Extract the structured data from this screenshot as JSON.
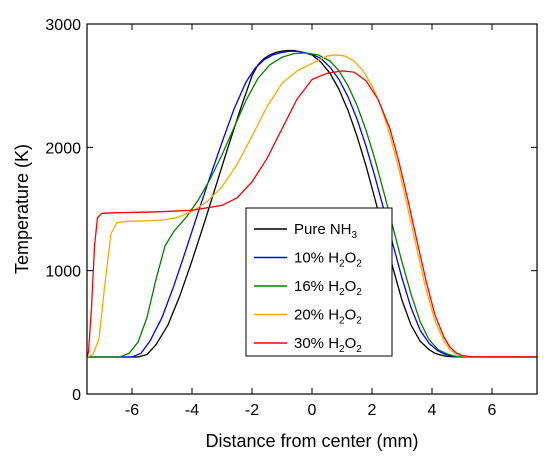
{
  "chart_data": {
    "type": "line",
    "title": "",
    "xlabel": "Distance from center (mm)",
    "ylabel": "Temperature (K)",
    "xlim": [
      -7.5,
      7.5
    ],
    "ylim": [
      0,
      3000
    ],
    "xticks": [
      -6,
      -4,
      -2,
      0,
      2,
      4,
      6
    ],
    "yticks": [
      0,
      1000,
      2000,
      3000
    ],
    "grid": false,
    "legend_position": "center-right",
    "series": [
      {
        "name": "Pure NH3",
        "label_main": "Pure NH",
        "label_sub": "3",
        "label_suffix": "",
        "color": "#000000",
        "x": [
          -7.5,
          -5.8,
          -5.5,
          -5.2,
          -4.8,
          -4.4,
          -4.0,
          -3.6,
          -3.2,
          -2.8,
          -2.4,
          -2.0,
          -1.8,
          -1.6,
          -1.4,
          -1.2,
          -1.0,
          -0.8,
          -0.6,
          -0.3,
          0.0,
          0.3,
          0.6,
          0.9,
          1.2,
          1.5,
          1.8,
          2.1,
          2.4,
          2.7,
          3.0,
          3.3,
          3.6,
          3.9,
          4.1,
          4.3,
          4.5,
          4.7,
          5.0,
          7.5
        ],
        "y": [
          300,
          300,
          320,
          400,
          560,
          800,
          1080,
          1380,
          1690,
          2000,
          2300,
          2580,
          2670,
          2720,
          2750,
          2770,
          2780,
          2785,
          2785,
          2770,
          2750,
          2690,
          2600,
          2470,
          2300,
          2090,
          1850,
          1580,
          1300,
          1020,
          760,
          560,
          430,
          360,
          330,
          315,
          305,
          302,
          300,
          300
        ]
      },
      {
        "name": "10% H2O2",
        "label_main": "10% H",
        "label_sub": "2",
        "label_suffix": "O",
        "label_sub2": "2",
        "color": "#0000ff",
        "x": [
          -7.5,
          -6.0,
          -5.7,
          -5.4,
          -5.0,
          -4.6,
          -4.2,
          -3.8,
          -3.4,
          -3.0,
          -2.6,
          -2.2,
          -1.9,
          -1.6,
          -1.3,
          -1.0,
          -0.7,
          -0.4,
          0.0,
          0.3,
          0.6,
          0.9,
          1.2,
          1.5,
          1.8,
          2.1,
          2.4,
          2.7,
          3.0,
          3.3,
          3.6,
          3.9,
          4.2,
          4.4,
          4.6,
          4.8,
          5.1,
          7.5
        ],
        "y": [
          300,
          300,
          330,
          430,
          620,
          880,
          1170,
          1470,
          1760,
          2040,
          2310,
          2530,
          2640,
          2710,
          2750,
          2770,
          2780,
          2775,
          2755,
          2720,
          2650,
          2550,
          2410,
          2230,
          2010,
          1760,
          1490,
          1210,
          940,
          700,
          520,
          410,
          350,
          325,
          310,
          303,
          300,
          300
        ]
      },
      {
        "name": "16% H2O2",
        "label_main": "16% H",
        "label_sub": "2",
        "label_suffix": "O",
        "label_sub2": "2",
        "color": "#008000",
        "x": [
          -7.5,
          -6.4,
          -6.1,
          -5.8,
          -5.5,
          -5.2,
          -4.9,
          -4.6,
          -4.2,
          -3.8,
          -3.4,
          -3.0,
          -2.6,
          -2.2,
          -1.8,
          -1.4,
          -1.0,
          -0.6,
          -0.2,
          0.2,
          0.6,
          0.9,
          1.2,
          1.5,
          1.8,
          2.1,
          2.4,
          2.7,
          3.0,
          3.3,
          3.6,
          3.9,
          4.2,
          4.5,
          4.7,
          4.9,
          5.2,
          7.5
        ],
        "y": [
          300,
          300,
          330,
          420,
          620,
          930,
          1200,
          1320,
          1430,
          1570,
          1740,
          1940,
          2160,
          2380,
          2560,
          2670,
          2730,
          2760,
          2765,
          2750,
          2700,
          2620,
          2500,
          2340,
          2140,
          1900,
          1630,
          1350,
          1070,
          810,
          590,
          440,
          360,
          325,
          310,
          303,
          300,
          300
        ]
      },
      {
        "name": "20% H2O2",
        "label_main": "20% H",
        "label_sub": "2",
        "label_suffix": "O",
        "label_sub2": "2",
        "color": "#ffaa00",
        "x": [
          -7.5,
          -7.3,
          -7.1,
          -6.9,
          -6.7,
          -6.5,
          -6.2,
          -5.5,
          -5.0,
          -4.5,
          -4.0,
          -3.5,
          -3.0,
          -2.5,
          -2.0,
          -1.5,
          -1.0,
          -0.5,
          0.0,
          0.5,
          0.8,
          1.1,
          1.4,
          1.7,
          2.0,
          2.3,
          2.6,
          2.9,
          3.2,
          3.5,
          3.8,
          4.1,
          4.4,
          4.6,
          4.8,
          5.0,
          5.3,
          7.5
        ],
        "y": [
          300,
          320,
          450,
          900,
          1300,
          1390,
          1400,
          1405,
          1410,
          1430,
          1480,
          1560,
          1680,
          1860,
          2090,
          2330,
          2520,
          2620,
          2680,
          2740,
          2750,
          2740,
          2700,
          2620,
          2500,
          2330,
          2100,
          1820,
          1500,
          1170,
          850,
          590,
          430,
          360,
          325,
          308,
          300,
          300
        ]
      },
      {
        "name": "30% H2O2",
        "label_main": "30% H",
        "label_sub": "2",
        "label_suffix": "O",
        "label_sub2": "2",
        "color": "#ff0000",
        "x": [
          -7.5,
          -7.45,
          -7.35,
          -7.25,
          -7.15,
          -7.0,
          -6.5,
          -6.0,
          -5.0,
          -4.0,
          -3.0,
          -2.5,
          -2.0,
          -1.5,
          -1.0,
          -0.5,
          0.0,
          0.5,
          1.0,
          1.4,
          1.8,
          2.2,
          2.6,
          2.9,
          3.2,
          3.5,
          3.8,
          4.1,
          4.4,
          4.6,
          4.8,
          5.0,
          5.3,
          7.5
        ],
        "y": [
          300,
          340,
          700,
          1200,
          1430,
          1465,
          1470,
          1472,
          1478,
          1490,
          1530,
          1590,
          1720,
          1910,
          2150,
          2390,
          2550,
          2600,
          2620,
          2610,
          2540,
          2390,
          2150,
          1880,
          1570,
          1240,
          920,
          640,
          460,
          380,
          335,
          312,
          302,
          300
        ]
      }
    ]
  }
}
